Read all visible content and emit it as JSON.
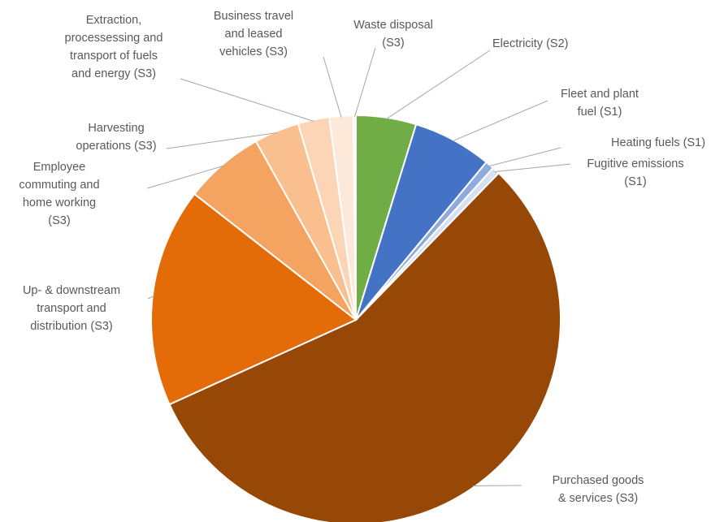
{
  "chart_data": {
    "type": "pie",
    "title": "",
    "start_angle_deg": 0,
    "direction": "clockwise",
    "slices": [
      {
        "label": [
          "Electricity (S2)"
        ],
        "value": 4.8,
        "color": "#70ad47"
      },
      {
        "label": [
          "Fleet and plant",
          "fuel (S1)"
        ],
        "value": 6.3,
        "color": "#4472c4"
      },
      {
        "label": [
          "Heating fuels (S1)"
        ],
        "value": 0.7,
        "color": "#8faadc"
      },
      {
        "label": [
          "Fugitive emissions",
          "(S1)"
        ],
        "value": 0.6,
        "color": "#d6e0f2"
      },
      {
        "label": [
          "Purchased goods",
          "& services (S3)"
        ],
        "value": 56.5,
        "color": "#974706"
      },
      {
        "label": [
          "Up- & downstream",
          "transport and",
          "distribution (S3)"
        ],
        "value": 17.5,
        "color": "#e36c09"
      },
      {
        "label": [
          "Employee",
          "commuting and",
          "home working",
          "(S3)"
        ],
        "value": 6.4,
        "color": "#f4a460"
      },
      {
        "label": [
          "Harvesting",
          "operations (S3)"
        ],
        "value": 3.6,
        "color": "#f9bf8f"
      },
      {
        "label": [
          "Extraction,",
          "processessing and",
          "transport of fuels",
          "and energy (S3)"
        ],
        "value": 2.5,
        "color": "#fbd5b5"
      },
      {
        "label": [
          "Business travel",
          "and leased",
          "vehicles (S3)"
        ],
        "value": 1.9,
        "color": "#fde9d9"
      },
      {
        "label": [
          "Waste disposal",
          "(S3)"
        ],
        "value": 0.2,
        "color": "#fff6ef"
      }
    ]
  }
}
